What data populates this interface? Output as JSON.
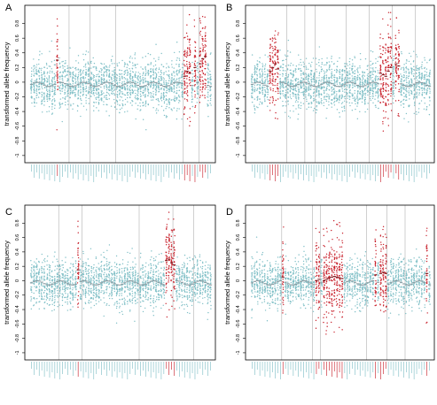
{
  "panels": [
    {
      "letter": "A",
      "chart_data": {
        "type": "scatter",
        "ylabel": "transformed allele frequency",
        "ylim": [
          -1.05,
          1.0
        ],
        "yticks": [
          -1,
          -0.8,
          -0.6,
          -0.4,
          -0.2,
          0,
          0.2,
          0.4,
          0.6,
          0.8
        ],
        "n_categories": 70,
        "separators": [
          15,
          23,
          33,
          59,
          65
        ],
        "series_base_centers": [
          0.02,
          -0.02,
          0.0,
          -0.03,
          -0.02,
          -0.04,
          -0.03
        ],
        "highlighted": [
          {
            "index": 10,
            "center": 0.3
          },
          {
            "index": 59,
            "center": 0.08
          },
          {
            "index": 60,
            "center": 0.15
          },
          {
            "index": 61,
            "center": 0.12
          },
          {
            "index": 63,
            "center": 0.2
          },
          {
            "index": 65,
            "center": 0.25
          },
          {
            "index": 66,
            "center": 0.32
          },
          {
            "index": 67,
            "center": 0.35
          }
        ]
      }
    },
    {
      "letter": "B",
      "chart_data": {
        "type": "scatter",
        "ylabel": "transformed allele frequency",
        "ylim": [
          -1.05,
          1.0
        ],
        "yticks": [
          -1,
          -0.8,
          -0.6,
          -0.4,
          -0.2,
          0,
          0.2,
          0.4,
          0.6,
          0.8
        ],
        "n_categories": 70,
        "separators": [
          14,
          21,
          25,
          37,
          46,
          55,
          64
        ],
        "highlighted": [
          {
            "index": 7,
            "center": 0.15
          },
          {
            "index": 8,
            "center": 0.2
          },
          {
            "index": 9,
            "center": 0.25
          },
          {
            "index": 10,
            "center": 0.18
          },
          {
            "index": 50,
            "center": 0.12
          },
          {
            "index": 51,
            "center": 0.1
          },
          {
            "index": 52,
            "center": 0.08
          },
          {
            "index": 53,
            "center": 0.15
          },
          {
            "index": 54,
            "center": 0.2
          },
          {
            "index": 56,
            "center": 0.25
          },
          {
            "index": 57,
            "center": 0.22
          }
        ]
      }
    },
    {
      "letter": "C",
      "chart_data": {
        "type": "scatter",
        "ylabel": "transformed allele frequency",
        "ylim": [
          -1.05,
          1.0
        ],
        "yticks": [
          -1,
          -0.8,
          -0.6,
          -0.4,
          -0.2,
          0,
          0.2,
          0.4,
          0.6,
          0.8
        ],
        "n_categories": 70,
        "separators": [
          11,
          20,
          42,
          55,
          63
        ],
        "highlighted": [
          {
            "index": 18,
            "center": 0.15
          },
          {
            "index": 52,
            "center": 0.28
          },
          {
            "index": 53,
            "center": 0.3
          },
          {
            "index": 54,
            "center": 0.25
          },
          {
            "index": 55,
            "center": 0.22
          }
        ]
      }
    },
    {
      "letter": "D",
      "chart_data": {
        "type": "scatter",
        "ylabel": "transformed allele frequency",
        "ylim": [
          -1.05,
          1.0
        ],
        "yticks": [
          -1,
          -0.8,
          -0.6,
          -0.4,
          -0.2,
          0,
          0.2,
          0.4,
          0.6,
          0.8
        ],
        "n_categories": 70,
        "separators": [
          12,
          24,
          27,
          45,
          53,
          60
        ],
        "highlighted": [
          {
            "index": 12,
            "center": 0.05
          },
          {
            "index": 25,
            "center": 0.0
          },
          {
            "index": 26,
            "center": 0.02
          },
          {
            "index": 28,
            "center": 0.0
          },
          {
            "index": 29,
            "center": 0.02
          },
          {
            "index": 30,
            "center": 0.04
          },
          {
            "index": 31,
            "center": 0.05
          },
          {
            "index": 32,
            "center": 0.06
          },
          {
            "index": 33,
            "center": 0.05
          },
          {
            "index": 34,
            "center": 0.04
          },
          {
            "index": 35,
            "center": 0.03
          },
          {
            "index": 48,
            "center": 0.08
          },
          {
            "index": 50,
            "center": 0.1
          },
          {
            "index": 51,
            "center": 0.12
          },
          {
            "index": 52,
            "center": 0.1
          },
          {
            "index": 68,
            "center": 0.1
          }
        ]
      }
    }
  ],
  "colors": {
    "base": "#7fbfc6",
    "highlight": "#c8202b",
    "median": "#8a9aa0",
    "separator": "#b0b0b0",
    "frame": "#000000",
    "tick": "#000000"
  }
}
